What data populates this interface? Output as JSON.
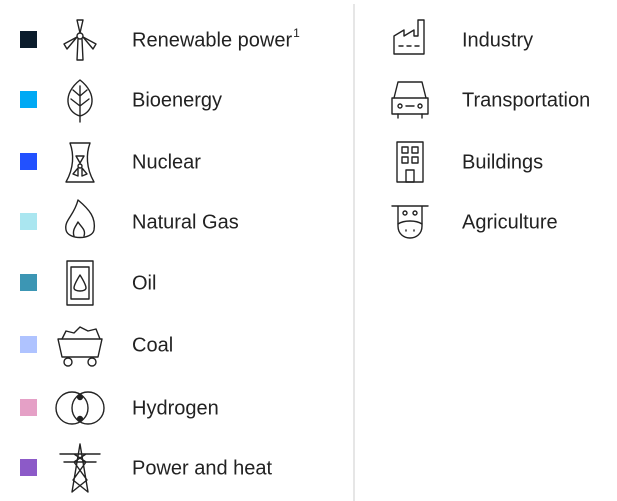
{
  "sources": [
    {
      "label": "Renewable power",
      "footnote": "1",
      "color": "#0b1c2c"
    },
    {
      "label": "Bioenergy",
      "color": "#00a9f4"
    },
    {
      "label": "Nuclear",
      "color": "#2251ff"
    },
    {
      "label": "Natural Gas",
      "color": "#aae6f0"
    },
    {
      "label": "Oil",
      "color": "#3c96b4"
    },
    {
      "label": "Coal",
      "color": "#afc3ff"
    },
    {
      "label": "Hydrogen",
      "color": "#e5a0c6"
    },
    {
      "label": "Power and heat",
      "color": "#8c5ac8"
    }
  ],
  "sectors": [
    {
      "label": "Industry"
    },
    {
      "label": "Transportation"
    },
    {
      "label": "Buildings"
    },
    {
      "label": "Agriculture"
    }
  ]
}
